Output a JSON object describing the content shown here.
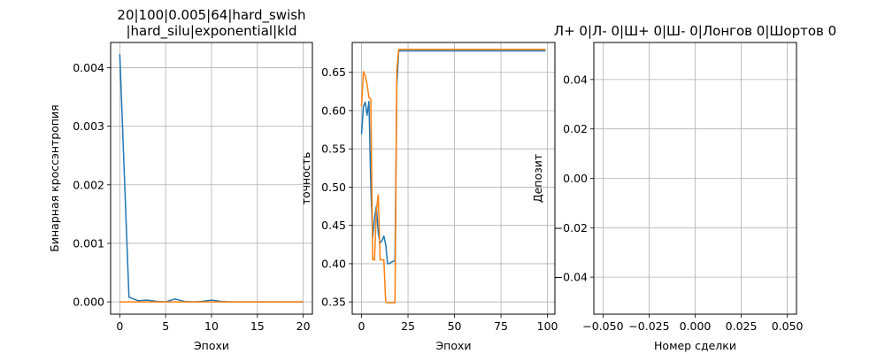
{
  "chart_data": [
    {
      "type": "line",
      "title": "20|100|0.005|64|hard_swish\n|hard_silu|exponential|kld",
      "xlabel": "Эпохи",
      "ylabel": "Бинарная кроссэнтропия",
      "xlim": [
        -1,
        21
      ],
      "ylim": [
        -0.00021,
        0.00443
      ],
      "xticks": [
        0,
        5,
        10,
        15,
        20
      ],
      "xtick_labels": [
        "0",
        "5",
        "10",
        "15",
        "20"
      ],
      "yticks": [
        0,
        0.001,
        0.002,
        0.003,
        0.004
      ],
      "ytick_labels": [
        "0.000",
        "0.001",
        "0.002",
        "0.003",
        "0.004"
      ],
      "grid": true,
      "series": [
        {
          "color": "#1f77b4",
          "x": [
            0,
            1,
            2,
            3,
            4,
            5,
            6,
            7,
            8,
            9,
            10,
            11,
            12,
            13,
            14,
            15,
            16,
            17,
            18,
            19,
            20
          ],
          "y": [
            0.00423,
            8e-05,
            2e-05,
            3e-05,
            1e-05,
            0.0,
            5e-05,
            1e-05,
            0.0,
            1e-05,
            3e-05,
            1e-05,
            0.0,
            0.0,
            0.0,
            0.0,
            0.0,
            0.0,
            0.0,
            0.0,
            0.0
          ]
        },
        {
          "color": "#ff7f0e",
          "x": [
            0,
            1,
            2,
            3,
            4,
            5,
            6,
            7,
            8,
            9,
            10,
            11,
            12,
            13,
            14,
            15,
            16,
            17,
            18,
            19,
            20
          ],
          "y": [
            0.0,
            0.0,
            0.0,
            0.0,
            0.0,
            0.0,
            0.0,
            0.0,
            0.0,
            0.0,
            0.0,
            0.0,
            0.0,
            0.0,
            0.0,
            0.0,
            0.0,
            0.0,
            0.0,
            0.0,
            0.0
          ]
        }
      ]
    },
    {
      "type": "line",
      "title": "",
      "xlabel": "Эпохи",
      "ylabel": "точность",
      "xlim": [
        -5,
        104
      ],
      "ylim": [
        0.334,
        0.689
      ],
      "xticks": [
        0,
        25,
        50,
        75,
        100
      ],
      "xtick_labels": [
        "0",
        "25",
        "50",
        "75",
        "100"
      ],
      "yticks": [
        0.35,
        0.4,
        0.45,
        0.5,
        0.55,
        0.6,
        0.65
      ],
      "ytick_labels": [
        "0.35",
        "0.40",
        "0.45",
        "0.50",
        "0.55",
        "0.60",
        "0.65"
      ],
      "grid": true,
      "series": [
        {
          "color": "#1f77b4",
          "x": [
            0,
            1,
            2,
            3,
            4,
            5,
            6,
            7,
            8,
            9,
            10,
            11,
            12,
            13,
            14,
            15,
            16,
            17,
            18,
            19,
            20,
            21,
            22,
            25,
            30,
            40,
            50,
            60,
            70,
            80,
            90,
            99
          ],
          "y": [
            0.569,
            0.605,
            0.611,
            0.594,
            0.612,
            0.5,
            0.434,
            0.46,
            0.475,
            0.44,
            0.427,
            0.43,
            0.436,
            0.425,
            0.4,
            0.4,
            0.402,
            0.403,
            0.404,
            0.634,
            0.678,
            0.678,
            0.678,
            0.678,
            0.678,
            0.678,
            0.678,
            0.678,
            0.678,
            0.678,
            0.678,
            0.678
          ]
        },
        {
          "color": "#ff7f0e",
          "x": [
            0,
            1,
            2,
            3,
            4,
            5,
            6,
            7,
            8,
            9,
            10,
            11,
            12,
            13,
            14,
            15,
            16,
            17,
            18,
            19,
            20,
            21,
            22,
            25,
            30,
            40,
            50,
            60,
            70,
            80,
            90,
            99
          ],
          "y": [
            0.605,
            0.651,
            0.645,
            0.634,
            0.617,
            0.615,
            0.405,
            0.405,
            0.47,
            0.49,
            0.405,
            0.405,
            0.405,
            0.35,
            0.349,
            0.349,
            0.349,
            0.349,
            0.349,
            0.653,
            0.68,
            0.68,
            0.68,
            0.68,
            0.68,
            0.68,
            0.68,
            0.68,
            0.68,
            0.68,
            0.68,
            0.68
          ]
        }
      ]
    },
    {
      "type": "line",
      "title": "Л+ 0|Л- 0|Ш+ 0|Ш- 0|Лонгов 0|Шортов 0",
      "xlabel": "Номер сделки",
      "ylabel": "Депозит",
      "xlim": [
        -0.055,
        0.055
      ],
      "ylim": [
        -0.055,
        0.055
      ],
      "xticks": [
        -0.05,
        -0.025,
        0,
        0.025,
        0.05
      ],
      "xtick_labels": [
        "−0.050",
        "−0.025",
        "0.000",
        "0.025",
        "0.050"
      ],
      "yticks": [
        -0.04,
        -0.02,
        0,
        0.02,
        0.04
      ],
      "ytick_labels": [
        "−0.04",
        "−0.02",
        "0.00",
        "0.02",
        "0.04"
      ],
      "grid": true,
      "series": []
    }
  ]
}
